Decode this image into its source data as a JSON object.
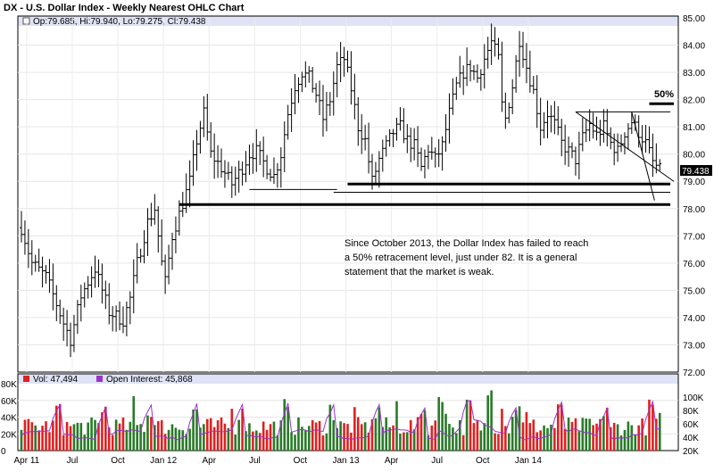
{
  "chart_data": {
    "type": "ohlc",
    "title": "DX - U.S. Dollar Index - Weekly Nearest OHLC Chart",
    "price_panel": {
      "legend": "Op:79.685, Hi:79.940, Lo:79.275, Cl:79.438",
      "ylim": [
        72,
        85
      ],
      "y_ticks": [
        "72.00",
        "73.00",
        "74.00",
        "75.00",
        "76.00",
        "77.00",
        "78.00",
        "79.00",
        "80.00",
        "81.00",
        "82.00",
        "83.00",
        "84.00",
        "85.00"
      ],
      "last_price": "79.438",
      "waypoints": [
        [
          0,
          77.3
        ],
        [
          3,
          76.0
        ],
        [
          7,
          75.5
        ],
        [
          10,
          74.5
        ],
        [
          12,
          73.8
        ],
        [
          14,
          73.2
        ],
        [
          17,
          74.8
        ],
        [
          21,
          75.8
        ],
        [
          25,
          74.2
        ],
        [
          29,
          73.9
        ],
        [
          31,
          74.7
        ],
        [
          33,
          76.0
        ],
        [
          36,
          77.5
        ],
        [
          38,
          78.0
        ],
        [
          40,
          76.0
        ],
        [
          41,
          75.3
        ],
        [
          43,
          77.0
        ],
        [
          45,
          77.8
        ],
        [
          48,
          79.0
        ],
        [
          50,
          80.5
        ],
        [
          52,
          81.5
        ],
        [
          54,
          80.0
        ],
        [
          57,
          79.5
        ],
        [
          60,
          78.9
        ],
        [
          63,
          79.5
        ],
        [
          65,
          80.0
        ],
        [
          67,
          80.1
        ],
        [
          70,
          79.5
        ],
        [
          72,
          79.2
        ],
        [
          74,
          80.0
        ],
        [
          76,
          81.5
        ],
        [
          78,
          82.5
        ],
        [
          80,
          83.0
        ],
        [
          82,
          82.8
        ],
        [
          84,
          82.2
        ],
        [
          86,
          81.3
        ],
        [
          88,
          82.0
        ],
        [
          90,
          83.2
        ],
        [
          92,
          83.5
        ],
        [
          94,
          82.4
        ],
        [
          96,
          81.0
        ],
        [
          98,
          80.5
        ],
        [
          100,
          79.0
        ],
        [
          102,
          79.8
        ],
        [
          104,
          80.3
        ],
        [
          106,
          80.8
        ],
        [
          108,
          81.0
        ],
        [
          110,
          80.5
        ],
        [
          112,
          80.3
        ],
        [
          114,
          79.5
        ],
        [
          116,
          80.2
        ],
        [
          118,
          79.8
        ],
        [
          120,
          80.3
        ],
        [
          122,
          81.5
        ],
        [
          124,
          82.5
        ],
        [
          126,
          83.0
        ],
        [
          128,
          83.2
        ],
        [
          130,
          82.8
        ],
        [
          132,
          83.5
        ],
        [
          134,
          84.1
        ],
        [
          136,
          83.5
        ],
        [
          137,
          81.8
        ],
        [
          138,
          81.3
        ],
        [
          140,
          82.5
        ],
        [
          142,
          84.2
        ],
        [
          144,
          83.2
        ],
        [
          146,
          82.3
        ],
        [
          148,
          81.0
        ],
        [
          150,
          81.5
        ],
        [
          152,
          81.1
        ],
        [
          154,
          80.4
        ],
        [
          156,
          80.1
        ],
        [
          158,
          79.8
        ],
        [
          160,
          80.6
        ],
        [
          162,
          81.1
        ],
        [
          164,
          80.7
        ],
        [
          166,
          81.0
        ],
        [
          168,
          80.4
        ],
        [
          170,
          80.1
        ],
        [
          172,
          80.8
        ],
        [
          174,
          81.2
        ],
        [
          176,
          80.8
        ],
        [
          178,
          80.4
        ],
        [
          180,
          79.7
        ],
        [
          182,
          79.4
        ]
      ],
      "horizontal_lines": [
        {
          "from_week": 45,
          "to_week": 185,
          "y": 78.15,
          "style": "thick"
        },
        {
          "from_week": 93,
          "to_week": 185,
          "y": 78.9,
          "style": "thick"
        },
        {
          "from_week": 65,
          "to_week": 90,
          "y": 78.7,
          "style": "thin"
        },
        {
          "from_week": 89,
          "to_week": 185,
          "y": 78.6,
          "style": "thin"
        },
        {
          "from_week": 158,
          "to_week": 185,
          "y": 81.55,
          "style": "thin"
        },
        {
          "from_week": 179,
          "to_week": 186,
          "y": 81.85,
          "style": "thick"
        }
      ],
      "trend_lines": [
        {
          "from": [
            158,
            81.55
          ],
          "to": [
            186,
            79.0
          ]
        },
        {
          "from": [
            174,
            81.55
          ],
          "to": [
            180.5,
            78.3
          ]
        }
      ],
      "label_50": "50%",
      "annotation": [
        "Since October 2013, the Dollar Index has failed to reach",
        "a 50% retracement level, just under 82.  It is a general",
        "statement that the market is weak."
      ]
    },
    "volume_panel": {
      "legend_vol": "Vol: 47,494",
      "legend_oi": "Open Interest: 45,868",
      "vol_ylim": [
        0,
        80000
      ],
      "oi_ylim": [
        20000,
        120000
      ],
      "left_ticks": [
        "0",
        "20K",
        "40K",
        "60K",
        "80K"
      ],
      "right_ticks": [
        "20K",
        "40K",
        "60K",
        "80K",
        "100K"
      ]
    },
    "x_labels": [
      "Apr 11",
      "Jul",
      "Oct",
      "Jan 12",
      "Apr",
      "Jul",
      "Oct",
      "Jan 13",
      "Apr",
      "Jul",
      "Oct",
      "Jan 14"
    ],
    "colors": {
      "up_volume": "#2a7a2a",
      "down_volume": "#e02020",
      "open_interest": "#9933cc",
      "band": "#dfe3f5"
    }
  }
}
